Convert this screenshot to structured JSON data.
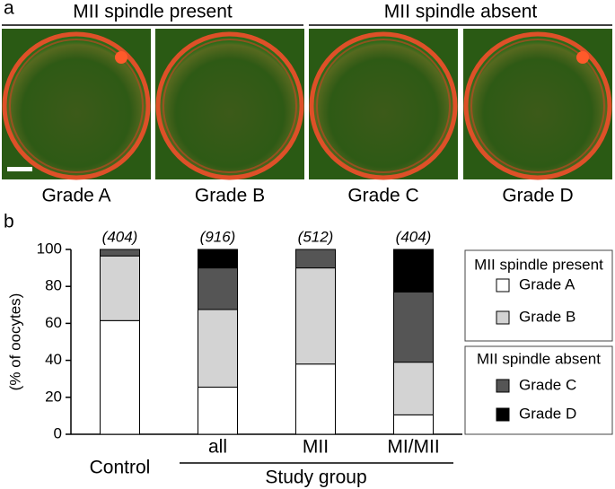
{
  "panel_a": {
    "label": "a",
    "group_titles": [
      "MII spindle present",
      "MII spindle absent"
    ],
    "image_labels": [
      "Grade A",
      "Grade B",
      "Grade C",
      "Grade D"
    ]
  },
  "chart_data": {
    "type": "bar",
    "stacked": true,
    "panel_label": "b",
    "ylabel": "(% of oocytes)",
    "categories": [
      "Control",
      "all",
      "MII",
      "MI/MII"
    ],
    "n_labels": [
      "(404)",
      "(916)",
      "(512)",
      "(404)"
    ],
    "group_label": "Study group",
    "series": [
      {
        "name": "Grade A",
        "color": "#ffffff",
        "values": [
          61.5,
          25.5,
          38,
          10.5
        ]
      },
      {
        "name": "Grade B",
        "color": "#d3d3d3",
        "values": [
          35,
          42,
          52,
          28.5
        ]
      },
      {
        "name": "Grade C",
        "color": "#555555",
        "values": [
          3.5,
          22.5,
          10,
          38
        ]
      },
      {
        "name": "Grade D",
        "color": "#000000",
        "values": [
          0,
          10,
          0,
          23
        ]
      }
    ],
    "legend_groups": [
      "MII spindle present",
      "MII spindle absent"
    ],
    "ylim": [
      0,
      100
    ],
    "yticks": [
      0,
      20,
      40,
      60,
      80,
      100
    ]
  }
}
